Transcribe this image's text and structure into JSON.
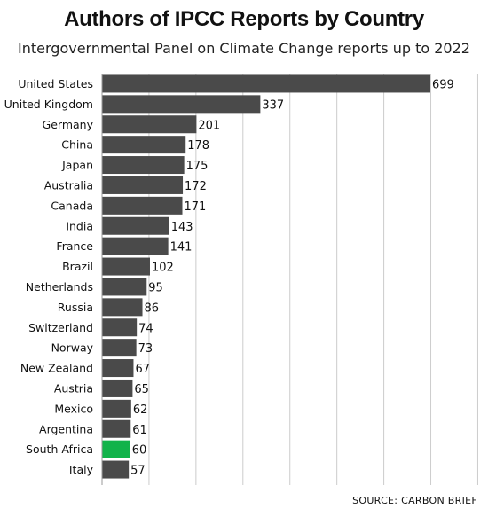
{
  "chart_data": {
    "type": "bar",
    "orientation": "horizontal",
    "title": "Authors of IPCC Reports by Country",
    "subtitle": "Intergovernmental Panel on Climate Change reports up to 2022",
    "source": "SOURCE: CARBON BRIEF",
    "categories": [
      "United States",
      "United Kingdom",
      "Germany",
      "China",
      "Japan",
      "Australia",
      "Canada",
      "India",
      "France",
      "Brazil",
      "Netherlands",
      "Russia",
      "Switzerland",
      "Norway",
      "New Zealand",
      "Austria",
      "Mexico",
      "Argentina",
      "South Africa",
      "Italy"
    ],
    "values": [
      699,
      337,
      201,
      178,
      175,
      172,
      171,
      143,
      141,
      102,
      95,
      86,
      74,
      73,
      67,
      65,
      62,
      61,
      60,
      57
    ],
    "xlim": [
      0,
      800
    ],
    "grid": true,
    "colors": {
      "default": "#4a4a4a",
      "highlight": "#11b34a",
      "grid": "#cccccc"
    },
    "highlight": "South Africa"
  }
}
